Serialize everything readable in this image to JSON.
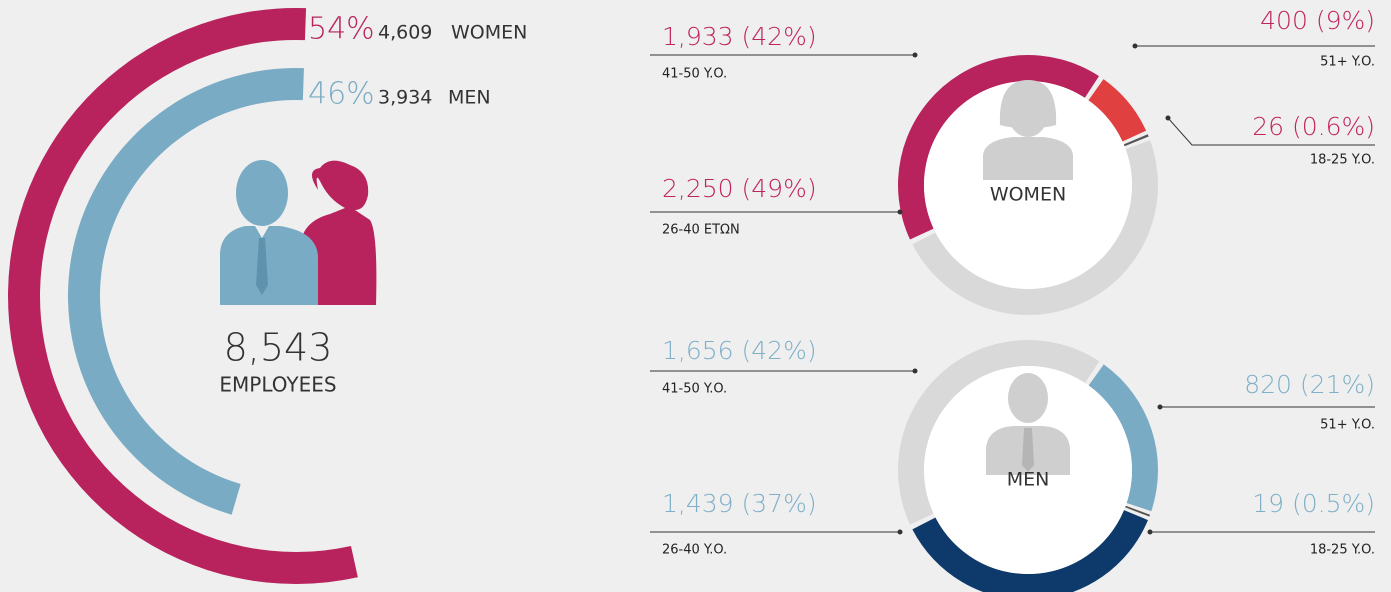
{
  "chart_data": [
    {
      "type": "radial",
      "categories": [
        "WOMEN",
        "MEN"
      ],
      "values": [
        54,
        46
      ],
      "value_labels": [
        "54%",
        "46%"
      ],
      "counts": [
        4609,
        3934
      ],
      "count_labels": [
        "4,609",
        "3,934"
      ],
      "colors": [
        "#b8235d",
        "#7aabc4"
      ],
      "total_label": "8,543",
      "total_name": "EMPLOYEES"
    },
    {
      "type": "donut",
      "title": "WOMEN",
      "categories": [
        "41-50 Y.O.",
        "51+ Y.O.",
        "18-25 Y.O.",
        "26-40 ΕΤΩΝ"
      ],
      "values": [
        42,
        9,
        0.6,
        49
      ],
      "counts": [
        1933,
        400,
        26,
        2250
      ],
      "value_labels": [
        "1,933 (42%)",
        "400 (9%)",
        "26 (0.6%)",
        "2,250 (49%)"
      ],
      "colors": [
        "#b8235d",
        "#e0403f",
        "#555555",
        "#d9d9d9"
      ],
      "label_color": "#c0245e"
    },
    {
      "type": "donut",
      "title": "MEN",
      "categories": [
        "41-50 Y.O.",
        "51+ Y.O.",
        "18-25 Y.O.",
        "26-40 Y.O."
      ],
      "values": [
        42,
        21,
        0.5,
        37
      ],
      "counts": [
        1656,
        820,
        19,
        1439
      ],
      "value_labels": [
        "1,656 (42%)",
        "820 (21%)",
        "19 (0.5%)",
        "1,439 (37%)"
      ],
      "colors": [
        "#d9d9d9",
        "#7aabc4",
        "#555555",
        "#0e3a6b"
      ],
      "label_color": "#7fb0c8"
    }
  ]
}
